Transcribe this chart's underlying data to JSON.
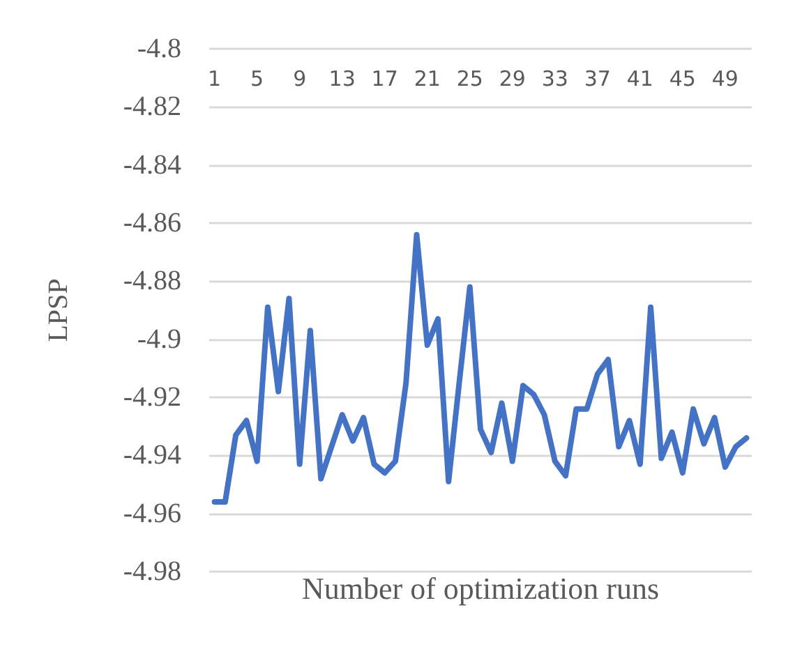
{
  "chart_data": {
    "type": "line",
    "xlabel": "Number of optimization runs",
    "ylabel": "LPSP",
    "categories": [
      "1",
      null,
      null,
      null,
      "5",
      null,
      null,
      null,
      "9",
      null,
      null,
      null,
      "13",
      null,
      null,
      null,
      "17",
      null,
      null,
      null,
      "21",
      null,
      null,
      null,
      "25",
      null,
      null,
      null,
      "29",
      null,
      null,
      null,
      "33",
      null,
      null,
      null,
      "37",
      null,
      null,
      null,
      "41",
      null,
      null,
      null,
      "45",
      null,
      null,
      null,
      "49",
      null,
      null
    ],
    "series": [
      {
        "color": "#4472c4",
        "values": [
          -4.956,
          -4.956,
          -4.933,
          -4.928,
          -4.942,
          -4.889,
          -4.918,
          -4.886,
          -4.943,
          -4.897,
          -4.948,
          -4.937,
          -4.926,
          -4.935,
          -4.927,
          -4.943,
          -4.946,
          -4.942,
          -4.915,
          -4.864,
          -4.902,
          -4.893,
          -4.949,
          -4.915,
          -4.882,
          -4.931,
          -4.939,
          -4.922,
          -4.942,
          -4.916,
          -4.919,
          -4.926,
          -4.942,
          -4.947,
          -4.924,
          -4.924,
          -4.912,
          -4.907,
          -4.937,
          -4.928,
          -4.943,
          -4.889,
          -4.941,
          -4.932,
          -4.946,
          -4.924,
          -4.936,
          -4.927,
          -4.944,
          -4.937,
          -4.934
        ]
      }
    ],
    "ylim": [
      -4.98,
      -4.8
    ],
    "yticks": [
      -4.98,
      -4.96,
      -4.94,
      -4.92,
      -4.9,
      -4.88,
      -4.86,
      -4.84,
      -4.82,
      -4.8
    ],
    "grid": "y",
    "marker": "none",
    "line_style": "solid"
  }
}
